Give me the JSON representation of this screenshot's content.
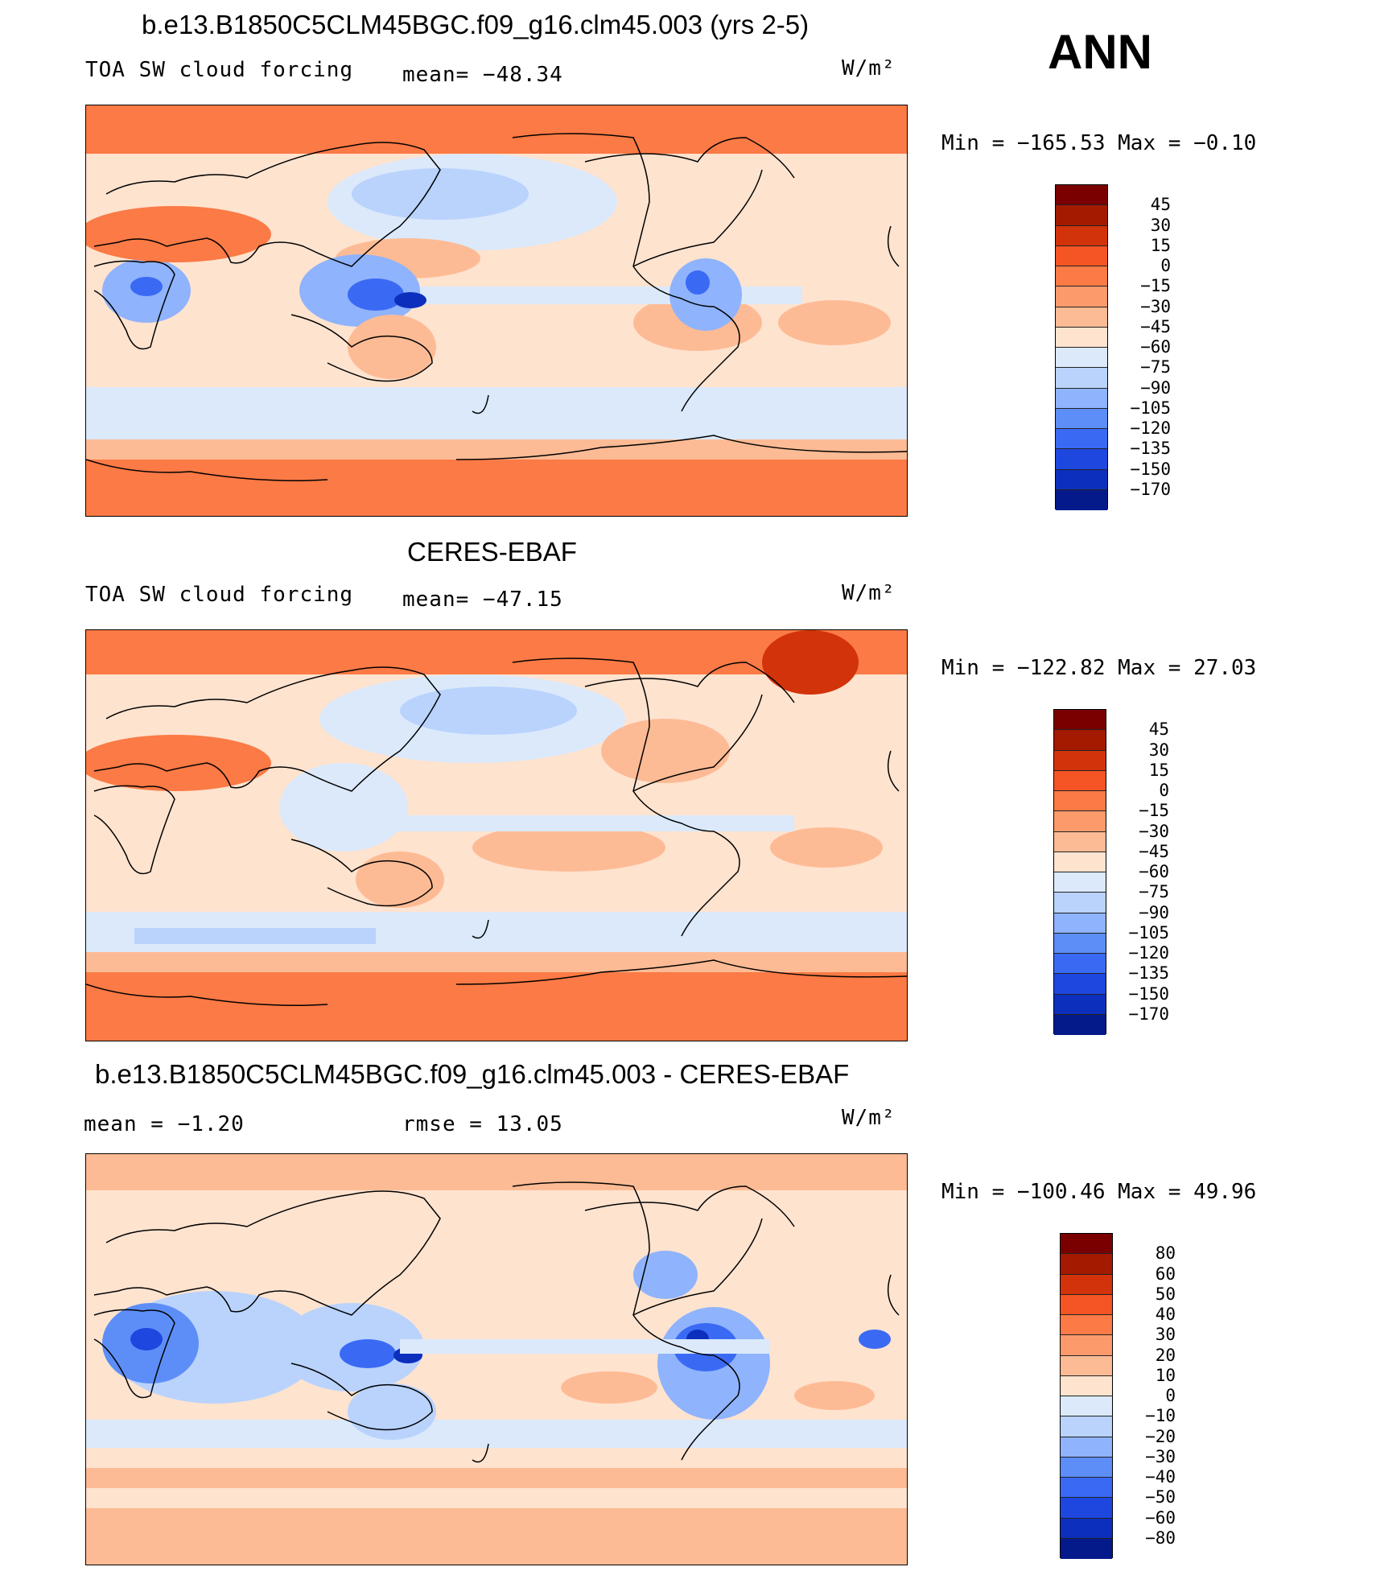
{
  "season": "ANN",
  "panels": [
    {
      "title": "b.e13.B1850C5CLM45BGC.f09_g16.clm45.003 (yrs 2-5)",
      "left_label": "TOA SW cloud forcing",
      "mid_label": "mean=  −48.34",
      "units": "W/m²",
      "minmax": "Min  =  −165.53  Max  =    −0.10",
      "colorbar_labels": [
        "45",
        "30",
        "15",
        "0",
        "−15",
        "−30",
        "−45",
        "−60",
        "−75",
        "−90",
        "−105",
        "−120",
        "−135",
        "−150",
        "−170"
      ]
    },
    {
      "title": "CERES-EBAF",
      "left_label": "TOA SW cloud forcing",
      "mid_label": "mean=  −47.15",
      "units": "W/m²",
      "minmax": "Min  =  −122.82  Max  =    27.03",
      "colorbar_labels": [
        "45",
        "30",
        "15",
        "0",
        "−15",
        "−30",
        "−45",
        "−60",
        "−75",
        "−90",
        "−105",
        "−120",
        "−135",
        "−150",
        "−170"
      ]
    },
    {
      "title": "b.e13.B1850C5CLM45BGC.f09_g16.clm45.003 - CERES-EBAF",
      "left_label": "mean  =    −1.20",
      "mid_label": "rmse  =    13.05",
      "units": "W/m²",
      "minmax": "Min  =  −100.46  Max  =    49.96",
      "colorbar_labels": [
        "80",
        "60",
        "50",
        "40",
        "30",
        "20",
        "10",
        "0",
        "−10",
        "−20",
        "−30",
        "−40",
        "−50",
        "−60",
        "−80"
      ]
    }
  ],
  "colors": {
    "colorbar": [
      "#7a0000",
      "#a41a00",
      "#d2330a",
      "#f55424",
      "#fb7a45",
      "#fd9a6c",
      "#fdbb95",
      "#fee3cf",
      "#dbe9fb",
      "#b9d3fd",
      "#8fb3fc",
      "#5d8ef8",
      "#3a6af4",
      "#1e47e0",
      "#0d2fbd",
      "#04198a"
    ],
    "land_line": "#000000"
  }
}
